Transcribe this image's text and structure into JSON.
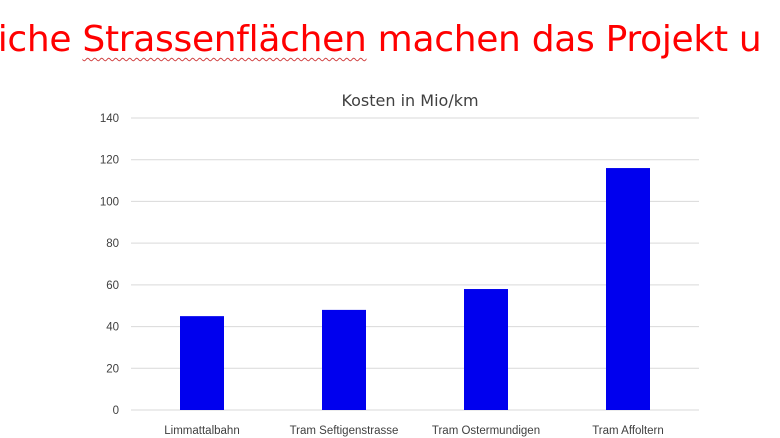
{
  "slide": {
    "title_prefix": "liche ",
    "title_flagged_word": "Strassenflächen",
    "title_suffix": " machen das Projekt u"
  },
  "colors": {
    "title": "#ff0000",
    "bar": "#0000ee",
    "grid": "#d9d9d9",
    "text": "#404040"
  },
  "chart_data": {
    "type": "bar",
    "title": "Kosten in Mio/km",
    "xlabel": "",
    "ylabel": "",
    "categories": [
      "Limmattalbahn",
      "Tram Seftigenstrasse",
      "Tram Ostermundigen",
      "Tram Affoltern"
    ],
    "values": [
      45,
      48,
      58,
      116
    ],
    "ylim": [
      0,
      140
    ],
    "yticks": [
      "0",
      "20",
      "40",
      "60",
      "80",
      "100",
      "120",
      "140"
    ],
    "grid": true,
    "legend": "none"
  }
}
